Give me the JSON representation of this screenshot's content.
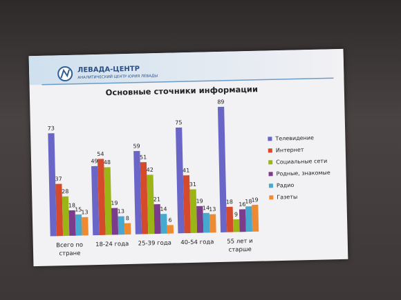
{
  "header": {
    "title": "ЛЕВАДА-ЦЕНТР",
    "subtitle": "АНАЛИТИЧЕСКИЙ ЦЕНТР ЮРИЯ ЛЕВАДЫ"
  },
  "chart_data": {
    "type": "bar",
    "title": "Основные сточники информации",
    "categories": [
      "Всего по стране",
      "18-24 года",
      "25-39 года",
      "40-54 года",
      "55 лет и старше"
    ],
    "series": [
      {
        "name": "Телевидение",
        "color": "#6a66c8",
        "values": [
          73,
          49,
          59,
          75,
          89
        ]
      },
      {
        "name": "Интернет",
        "color": "#d64a2c",
        "values": [
          37,
          54,
          51,
          41,
          18
        ]
      },
      {
        "name": "Социальные сети",
        "color": "#9cb516",
        "values": [
          28,
          48,
          42,
          31,
          9
        ]
      },
      {
        "name": "Родные, знакомые",
        "color": "#7b3c8c",
        "values": [
          18,
          19,
          21,
          19,
          16
        ]
      },
      {
        "name": "Радио",
        "color": "#47a9cf",
        "values": [
          15,
          13,
          14,
          14,
          18
        ]
      },
      {
        "name": "Газеты",
        "color": "#ee8a32",
        "values": [
          13,
          8,
          6,
          13,
          19
        ]
      }
    ],
    "legend": "right"
  }
}
